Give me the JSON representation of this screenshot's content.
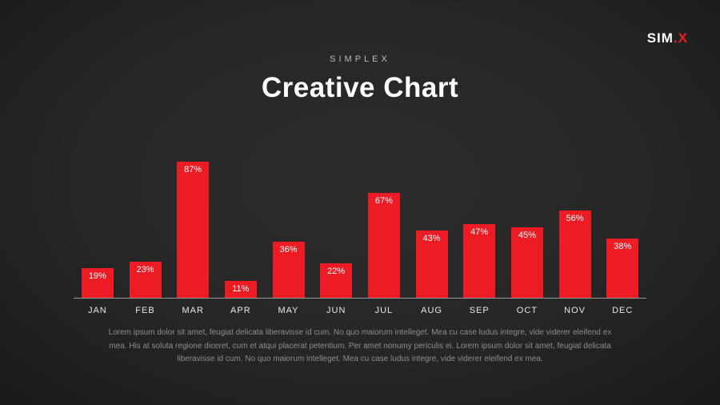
{
  "logo": {
    "main": "SIM",
    "accent": ".X"
  },
  "header": {
    "kicker": "SIMPLEX",
    "title": "Creative Chart"
  },
  "chart_data": {
    "type": "bar",
    "categories": [
      "JAN",
      "FEB",
      "MAR",
      "APR",
      "MAY",
      "JUN",
      "JUL",
      "AUG",
      "SEP",
      "OCT",
      "NOV",
      "DEC"
    ],
    "values": [
      19,
      23,
      87,
      11,
      36,
      22,
      67,
      43,
      47,
      45,
      56,
      38
    ],
    "value_labels": [
      "19%",
      "23%",
      "87%",
      "11%",
      "36%",
      "22%",
      "67%",
      "43%",
      "47%",
      "45%",
      "56%",
      "38%"
    ],
    "title": "Creative Chart",
    "xlabel": "",
    "ylabel": "",
    "ylim": [
      0,
      100
    ],
    "grid": false,
    "legend": false,
    "bar_color": "#ed1c24",
    "label_color": "#ffffff",
    "axis_line_color": "#9a9a9a"
  },
  "footer": {
    "paragraph": "Lorem ipsum dolor sit amet, feugiat delicata liberavisse id cum. No quo maiorum intelleget. Mea cu case ludus integre, vide viderer eleifend ex mea. His at soluta regione diceret, cum et atqui placerat petentium. Per amet nonumy periculis ei. Lorem ipsum dolor sit amet, feugiat delicata liberavisse id cum. No quo maiorum intelleget. Mea cu case ludus integre, vide viderer eleifend ex mea."
  }
}
